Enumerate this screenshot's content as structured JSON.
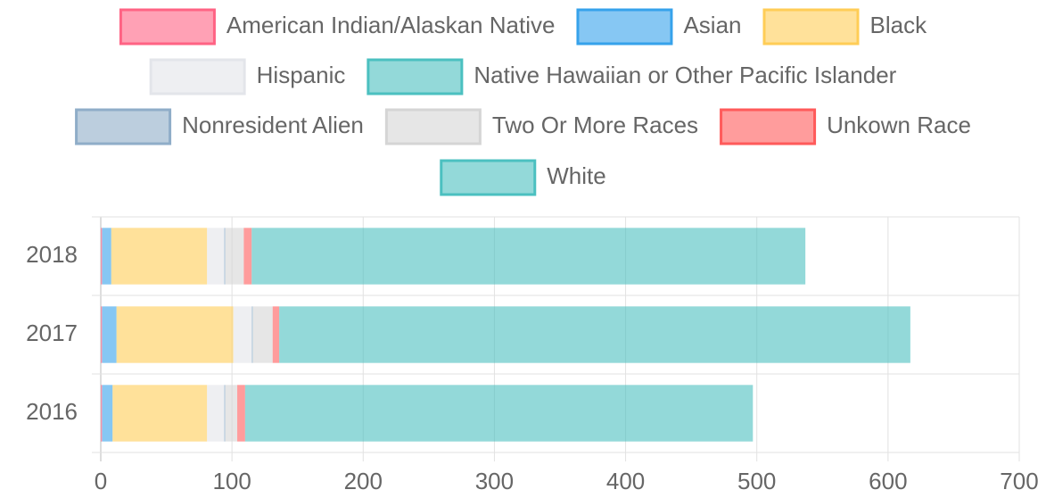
{
  "chart_data": {
    "type": "bar",
    "orientation": "horizontal",
    "stacked": true,
    "categories": [
      "2018",
      "2017",
      "2016"
    ],
    "series": [
      {
        "name": "American Indian/Alaskan Native",
        "color": "#ff6384",
        "values": [
          1,
          1,
          1
        ]
      },
      {
        "name": "Asian",
        "color": "#36a2eb",
        "values": [
          7,
          11,
          8
        ]
      },
      {
        "name": "Black",
        "color": "#ffcd56",
        "values": [
          73,
          89,
          72
        ]
      },
      {
        "name": "Hispanic",
        "color": "#e3e5ea",
        "values": [
          13,
          14,
          13
        ]
      },
      {
        "name": "Native Hawaiian or Other Pacific Islander",
        "color": "#4bc0c0",
        "values": [
          0,
          0,
          0
        ]
      },
      {
        "name": "Nonresident Alien",
        "color": "#8fadc8",
        "values": [
          1,
          1,
          1
        ]
      },
      {
        "name": "Two Or More Races",
        "color": "#d5d5d5",
        "values": [
          14,
          15,
          9
        ]
      },
      {
        "name": "Unkown Race",
        "color": "#ff5a5a",
        "values": [
          6,
          5,
          6
        ]
      },
      {
        "name": "White",
        "color": "#4bc0c0",
        "values": [
          422,
          481,
          387
        ]
      }
    ],
    "xlim": [
      0,
      700
    ],
    "xticks": [
      0,
      100,
      200,
      300,
      400,
      500,
      600,
      700
    ],
    "grid": true,
    "legend": "top"
  }
}
